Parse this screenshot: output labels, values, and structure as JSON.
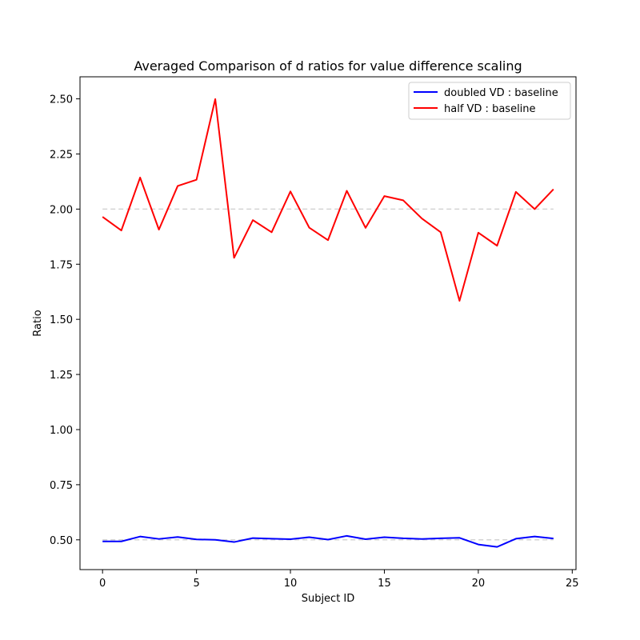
{
  "chart_data": {
    "type": "line",
    "title": "Averaged Comparison of d ratios for value difference scaling",
    "xlabel": "Subject ID",
    "ylabel": "Ratio",
    "xlim": [
      -1.2,
      25.2
    ],
    "ylim": [
      0.365,
      2.6
    ],
    "xticks": [
      0,
      5,
      10,
      15,
      20,
      25
    ],
    "yticks": [
      0.5,
      0.75,
      1.0,
      1.25,
      1.5,
      1.75,
      2.0,
      2.25,
      2.5
    ],
    "ytick_labels": [
      "0.50",
      "0.75",
      "1.00",
      "1.25",
      "1.50",
      "1.75",
      "2.00",
      "2.25",
      "2.50"
    ],
    "grid": false,
    "legend_position": "top-right",
    "x": [
      0,
      1,
      2,
      3,
      4,
      5,
      6,
      7,
      8,
      9,
      10,
      11,
      12,
      13,
      14,
      15,
      16,
      17,
      18,
      19,
      20,
      21,
      22,
      23,
      24
    ],
    "series": [
      {
        "name": "doubled VD : baseline",
        "color": "#0000ff",
        "values": [
          0.493,
          0.493,
          0.515,
          0.504,
          0.513,
          0.502,
          0.5,
          0.49,
          0.508,
          0.505,
          0.503,
          0.512,
          0.501,
          0.518,
          0.503,
          0.512,
          0.507,
          0.504,
          0.507,
          0.509,
          0.479,
          0.468,
          0.505,
          0.515,
          0.506
        ]
      },
      {
        "name": "half VD : baseline",
        "color": "#ff0000",
        "values": [
          1.965,
          1.903,
          2.143,
          1.907,
          2.105,
          2.133,
          2.499,
          1.779,
          1.95,
          1.895,
          2.08,
          1.916,
          1.859,
          2.083,
          1.915,
          2.059,
          2.04,
          1.957,
          1.895,
          1.584,
          1.893,
          1.834,
          2.078,
          2.0,
          2.09
        ]
      }
    ],
    "reference_lines": [
      {
        "y": 2.0,
        "x_from": 0,
        "x_to": 24,
        "color": "#d3d3d3",
        "style": "dashed"
      },
      {
        "y": 0.5,
        "x_from": 0,
        "x_to": 24,
        "color": "#d3d3d3",
        "style": "dashed"
      }
    ]
  }
}
